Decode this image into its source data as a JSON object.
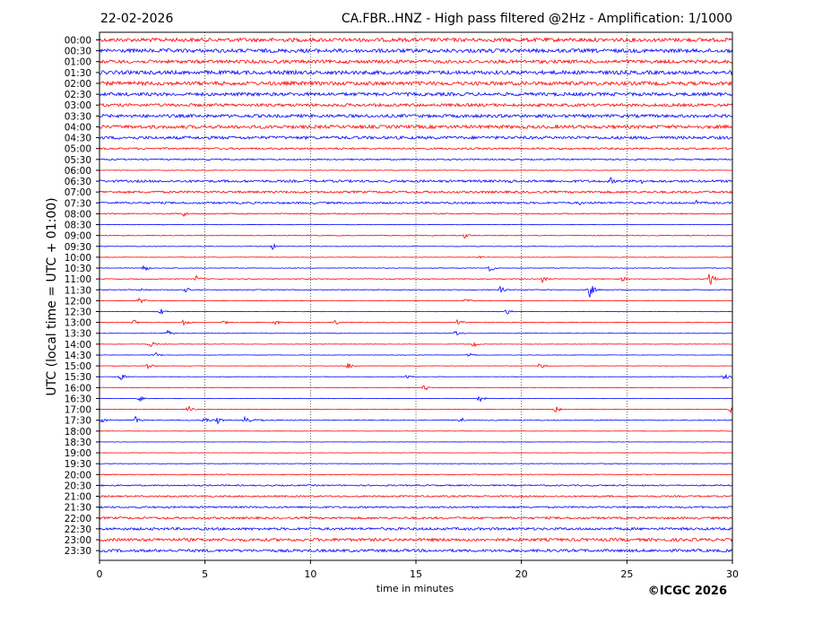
{
  "header": {
    "date": "22-02-2026",
    "title": "CA.FBR..HNZ - High pass filtered @2Hz - Amplification: 1/1000"
  },
  "footer": {
    "copyright": "©ICGC 2026"
  },
  "colors": {
    "red": "#ff0000",
    "blue": "#0000ff",
    "frame": "#000000"
  },
  "chart_data": {
    "type": "line",
    "title": "CA.FBR..HNZ - High pass filtered @2Hz - Amplification: 1/1000",
    "xlabel": "time in minutes",
    "ylabel": "UTC (local time = UTC + 01:00)",
    "xlim": [
      0,
      30
    ],
    "xticks": [
      0,
      5,
      10,
      15,
      20,
      25,
      30
    ],
    "vertical_gridlines": [
      5,
      10,
      15,
      20,
      25
    ],
    "row_labels": [
      "00:00",
      "00:30",
      "01:00",
      "01:30",
      "02:00",
      "02:30",
      "03:00",
      "03:30",
      "04:00",
      "04:30",
      "05:00",
      "05:30",
      "06:00",
      "06:30",
      "07:00",
      "07:30",
      "08:00",
      "08:30",
      "09:00",
      "09:30",
      "10:00",
      "10:30",
      "11:00",
      "11:30",
      "12:00",
      "12:30",
      "13:00",
      "13:30",
      "14:00",
      "14:30",
      "15:00",
      "15:30",
      "16:00",
      "16:30",
      "17:00",
      "17:30",
      "18:00",
      "18:30",
      "19:00",
      "19:30",
      "20:00",
      "20:30",
      "21:00",
      "21:30",
      "22:00",
      "22:30",
      "23:00",
      "23:30"
    ],
    "row_colors": [
      "red",
      "blue"
    ],
    "noise_level": [
      0.95,
      0.95,
      0.85,
      0.95,
      0.95,
      0.85,
      0.75,
      0.8,
      0.85,
      0.75,
      0.45,
      0.35,
      0.15,
      0.6,
      0.55,
      0.5,
      0.3,
      0.12,
      0.2,
      0.12,
      0.1,
      0.15,
      0.2,
      0.2,
      0.1,
      0.1,
      0.15,
      0.1,
      0.1,
      0.1,
      0.1,
      0.1,
      0.1,
      0.1,
      0.12,
      0.2,
      0.08,
      0.08,
      0.08,
      0.15,
      0.2,
      0.35,
      0.4,
      0.45,
      0.55,
      0.65,
      0.75,
      0.7
    ],
    "events": [
      {
        "row": 6,
        "x": 0.8,
        "amp": 0.15
      },
      {
        "row": 6,
        "x": 28.7,
        "amp": 0.15
      },
      {
        "row": 13,
        "x": 19.5,
        "amp": 0.3
      },
      {
        "row": 13,
        "x": 24.2,
        "amp": 0.4
      },
      {
        "row": 13,
        "x": 25.7,
        "amp": 0.3
      },
      {
        "row": 15,
        "x": 22.8,
        "amp": 0.25
      },
      {
        "row": 15,
        "x": 28.3,
        "amp": 0.25
      },
      {
        "row": 16,
        "x": 4.0,
        "amp": 0.3
      },
      {
        "row": 18,
        "x": 17.3,
        "amp": 0.3
      },
      {
        "row": 19,
        "x": 8.2,
        "amp": 0.3
      },
      {
        "row": 20,
        "x": 18.0,
        "amp": 0.15
      },
      {
        "row": 21,
        "x": 2.1,
        "amp": 0.35
      },
      {
        "row": 21,
        "x": 18.5,
        "amp": 0.4
      },
      {
        "row": 22,
        "x": 4.6,
        "amp": 0.35
      },
      {
        "row": 22,
        "x": 21.0,
        "amp": 0.35
      },
      {
        "row": 22,
        "x": 28.9,
        "amp": 0.9
      },
      {
        "row": 22,
        "x": 24.8,
        "amp": 0.25
      },
      {
        "row": 23,
        "x": 4.1,
        "amp": 0.35
      },
      {
        "row": 23,
        "x": 19.0,
        "amp": 0.35
      },
      {
        "row": 23,
        "x": 23.2,
        "amp": 0.9
      },
      {
        "row": 23,
        "x": 2.0,
        "amp": 0.2
      },
      {
        "row": 24,
        "x": 1.9,
        "amp": 0.35
      },
      {
        "row": 24,
        "x": 17.4,
        "amp": 0.35
      },
      {
        "row": 25,
        "x": 2.9,
        "amp": 0.35
      },
      {
        "row": 25,
        "x": 19.3,
        "amp": 0.35
      },
      {
        "row": 26,
        "x": 1.6,
        "amp": 0.3
      },
      {
        "row": 26,
        "x": 4.0,
        "amp": 0.35
      },
      {
        "row": 26,
        "x": 5.8,
        "amp": 0.3
      },
      {
        "row": 26,
        "x": 8.3,
        "amp": 0.35
      },
      {
        "row": 26,
        "x": 11.2,
        "amp": 0.3
      },
      {
        "row": 26,
        "x": 17.0,
        "amp": 0.35
      },
      {
        "row": 27,
        "x": 3.2,
        "amp": 0.35
      },
      {
        "row": 27,
        "x": 16.9,
        "amp": 0.35
      },
      {
        "row": 28,
        "x": 2.4,
        "amp": 0.35
      },
      {
        "row": 28,
        "x": 17.7,
        "amp": 0.35
      },
      {
        "row": 29,
        "x": 2.6,
        "amp": 0.35
      },
      {
        "row": 29,
        "x": 17.5,
        "amp": 0.35
      },
      {
        "row": 30,
        "x": 2.3,
        "amp": 0.35
      },
      {
        "row": 30,
        "x": 11.8,
        "amp": 0.35
      },
      {
        "row": 30,
        "x": 20.9,
        "amp": 0.35
      },
      {
        "row": 31,
        "x": 1.0,
        "amp": 0.35
      },
      {
        "row": 31,
        "x": 14.6,
        "amp": 0.35
      },
      {
        "row": 31,
        "x": 29.6,
        "amp": 0.4
      },
      {
        "row": 32,
        "x": 15.4,
        "amp": 0.35
      },
      {
        "row": 33,
        "x": 1.9,
        "amp": 0.35
      },
      {
        "row": 33,
        "x": 18.0,
        "amp": 0.35
      },
      {
        "row": 34,
        "x": 4.2,
        "amp": 0.35
      },
      {
        "row": 34,
        "x": 21.6,
        "amp": 0.35
      },
      {
        "row": 34,
        "x": 29.9,
        "amp": 0.3
      },
      {
        "row": 35,
        "x": 0.1,
        "amp": 0.3
      },
      {
        "row": 35,
        "x": 1.7,
        "amp": 0.35
      },
      {
        "row": 35,
        "x": 5.0,
        "amp": 0.45
      },
      {
        "row": 35,
        "x": 5.6,
        "amp": 0.35
      },
      {
        "row": 35,
        "x": 6.9,
        "amp": 0.6
      },
      {
        "row": 35,
        "x": 7.5,
        "amp": 0.3
      },
      {
        "row": 35,
        "x": 17.1,
        "amp": 0.35
      }
    ]
  }
}
